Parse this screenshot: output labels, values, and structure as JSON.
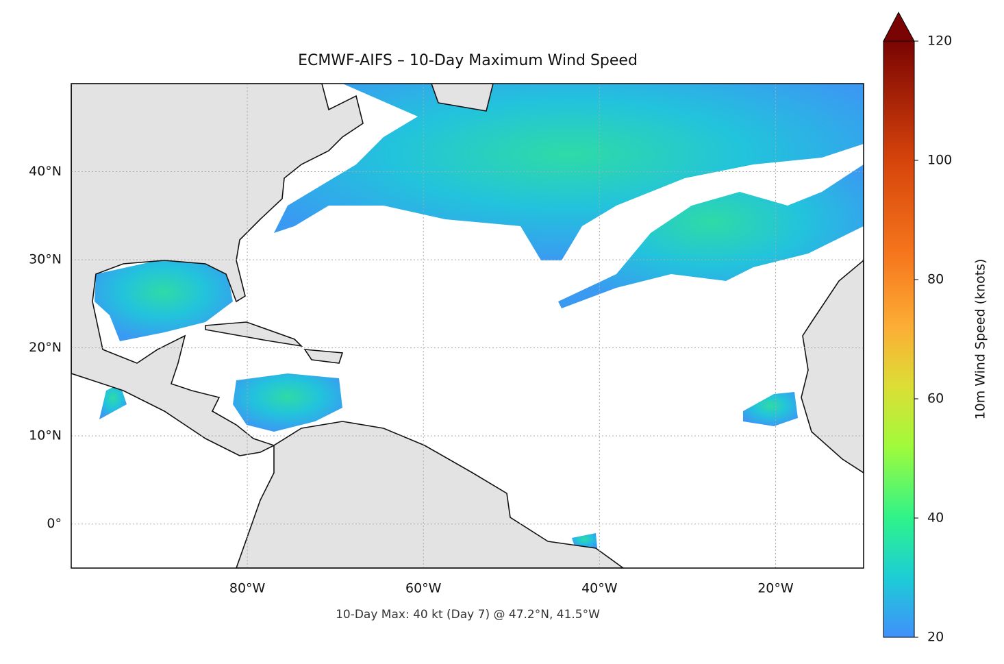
{
  "chart_data": {
    "type": "map",
    "title": "ECMWF-AIFS – 10-Day Maximum Wind Speed",
    "footnote": "10-Day Max: 40 kt (Day 7) @ 47.2°N, 41.5°W",
    "xlim": [
      -100,
      -10
    ],
    "ylim": [
      -5,
      50
    ],
    "xticks": [
      {
        "value": -80,
        "label": "80°W"
      },
      {
        "value": -60,
        "label": "60°W"
      },
      {
        "value": -40,
        "label": "40°W"
      },
      {
        "value": -20,
        "label": "20°W"
      }
    ],
    "yticks": [
      {
        "value": 0,
        "label": "0°"
      },
      {
        "value": 10,
        "label": "10°N"
      },
      {
        "value": 20,
        "label": "20°N"
      },
      {
        "value": 30,
        "label": "30°N"
      },
      {
        "value": 40,
        "label": "40°N"
      }
    ],
    "grid": true,
    "colorbar": {
      "label": "10m Wind Speed (knots)",
      "lim": [
        20,
        120
      ],
      "ticks": [
        20,
        40,
        60,
        80,
        100,
        120
      ]
    }
  }
}
